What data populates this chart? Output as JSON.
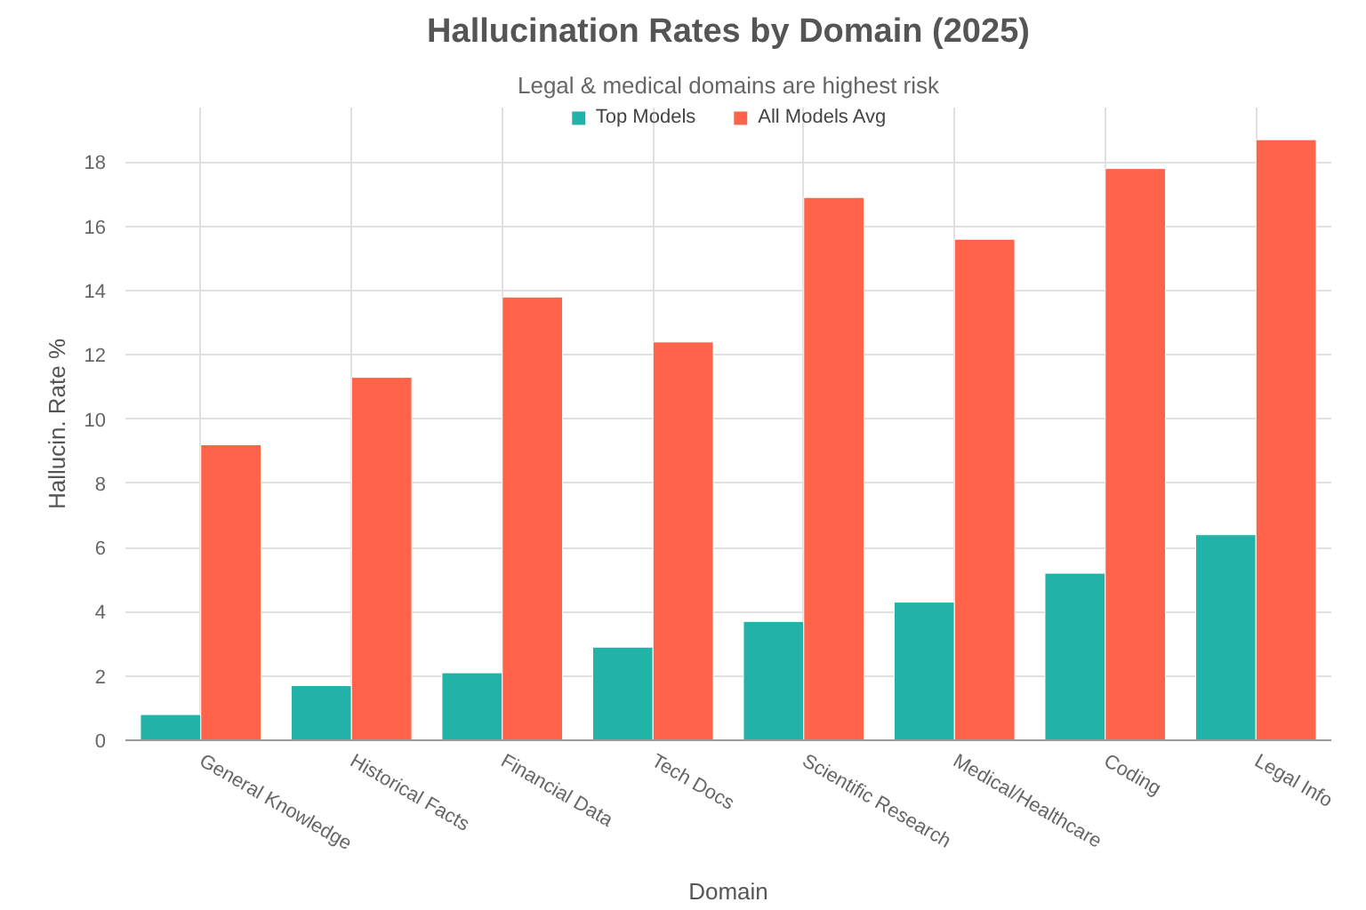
{
  "chart_data": {
    "type": "bar",
    "title": "Hallucination Rates by Domain (2025)",
    "subtitle": "Legal & medical domains are highest risk",
    "xlabel": "Domain",
    "ylabel": "Hallucin. Rate %",
    "categories": [
      "General Knowledge",
      "Historical Facts",
      "Financial Data",
      "Tech Docs",
      "Scientific Research",
      "Medical/Healthcare",
      "Coding",
      "Legal Info"
    ],
    "series": [
      {
        "name": "Top Models",
        "color": "#21b3a8",
        "values": [
          0.8,
          1.7,
          2.1,
          2.9,
          3.7,
          4.3,
          5.2,
          6.4
        ]
      },
      {
        "name": "All Models Avg",
        "color": "#ff644b",
        "values": [
          9.2,
          11.3,
          13.8,
          12.4,
          16.9,
          15.6,
          17.8,
          18.7
        ]
      }
    ],
    "ylim": [
      0,
      19.7
    ],
    "yticks": [
      0,
      2,
      4,
      6,
      8,
      10,
      12,
      14,
      16,
      18
    ],
    "grid": true,
    "legend": "top"
  }
}
